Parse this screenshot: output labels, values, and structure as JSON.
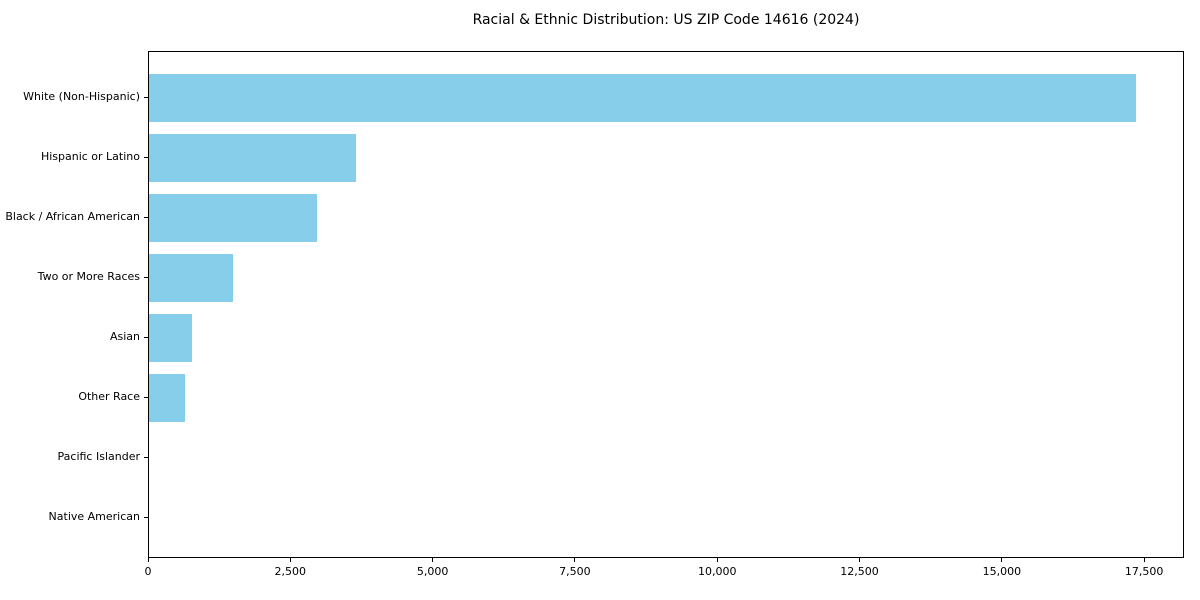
{
  "chart_data": {
    "type": "bar",
    "orientation": "horizontal",
    "title": "Racial & Ethnic Distribution: US ZIP Code 14616 (2024)",
    "categories": [
      "White (Non-Hispanic)",
      "Hispanic or Latino",
      "Black / African American",
      "Two or More Races",
      "Asian",
      "Other Race",
      "Pacific Islander",
      "Native American"
    ],
    "values": [
      17380,
      3650,
      2950,
      1480,
      750,
      640,
      0,
      0
    ],
    "xlabel": "",
    "ylabel": "",
    "xlim": [
      0,
      18200
    ],
    "xticks": [
      0,
      2500,
      5000,
      7500,
      10000,
      12500,
      15000,
      17500
    ],
    "xtick_labels": [
      "0",
      "2,500",
      "5,000",
      "7,500",
      "10,000",
      "12,500",
      "15,000",
      "17,500"
    ],
    "bar_color": "#87CEEB",
    "text_color": "#000000",
    "grid": false,
    "legend": null
  }
}
